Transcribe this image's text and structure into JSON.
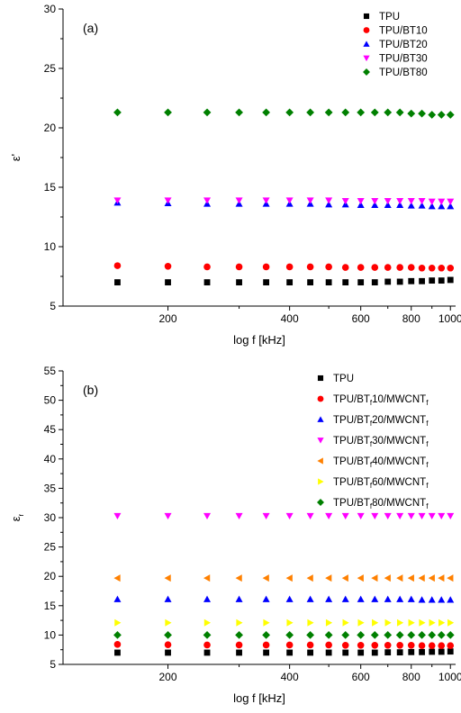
{
  "chart_data": [
    {
      "type": "scatter",
      "panel_label": "(a)",
      "xlabel": "log f [kHz]",
      "ylabel": "ε'",
      "x_scale": "log",
      "xlim": [
        110,
        1030
      ],
      "ylim": [
        5,
        30
      ],
      "x_ticks": [
        200,
        400,
        600,
        800,
        1000
      ],
      "y_ticks": [
        5,
        10,
        15,
        20,
        25,
        30
      ],
      "grid": false,
      "legend_placement": "top-right",
      "x": [
        150,
        200,
        250,
        300,
        350,
        400,
        450,
        500,
        550,
        600,
        650,
        700,
        750,
        800,
        850,
        900,
        950,
        1000
      ],
      "series": [
        {
          "name": "TPU",
          "marker": "square",
          "color": "#000000",
          "values": [
            7.0,
            7.0,
            7.0,
            7.0,
            7.0,
            7.0,
            7.0,
            7.0,
            7.0,
            7.0,
            7.0,
            7.05,
            7.05,
            7.1,
            7.1,
            7.15,
            7.15,
            7.2
          ]
        },
        {
          "name": "TPU/BT10",
          "marker": "circle",
          "color": "#ff0000",
          "values": [
            8.4,
            8.35,
            8.3,
            8.3,
            8.3,
            8.3,
            8.3,
            8.3,
            8.25,
            8.25,
            8.25,
            8.25,
            8.25,
            8.25,
            8.2,
            8.2,
            8.2,
            8.2
          ]
        },
        {
          "name": "TPU/BT20",
          "marker": "triangle-up",
          "color": "#0000ff",
          "values": [
            13.7,
            13.65,
            13.6,
            13.6,
            13.6,
            13.6,
            13.6,
            13.55,
            13.55,
            13.5,
            13.5,
            13.5,
            13.5,
            13.45,
            13.45,
            13.4,
            13.4,
            13.4
          ]
        },
        {
          "name": "TPU/BT30",
          "marker": "triangle-down",
          "color": "#ff00ff",
          "values": [
            13.9,
            13.9,
            13.9,
            13.9,
            13.9,
            13.9,
            13.9,
            13.9,
            13.85,
            13.85,
            13.85,
            13.85,
            13.85,
            13.85,
            13.85,
            13.8,
            13.8,
            13.8
          ]
        },
        {
          "name": "TPU/BT80",
          "marker": "diamond",
          "color": "#008000",
          "values": [
            21.3,
            21.3,
            21.3,
            21.3,
            21.3,
            21.3,
            21.3,
            21.3,
            21.3,
            21.3,
            21.3,
            21.3,
            21.3,
            21.2,
            21.2,
            21.1,
            21.1,
            21.1
          ]
        }
      ]
    },
    {
      "type": "scatter",
      "panel_label": "(b)",
      "xlabel": "log f [kHz]",
      "ylabel": "ε",
      "ylabel_sub": "r",
      "x_scale": "log",
      "xlim": [
        110,
        1030
      ],
      "ylim": [
        5,
        55
      ],
      "x_ticks": [
        200,
        400,
        600,
        800,
        1000
      ],
      "y_ticks": [
        5,
        10,
        15,
        20,
        25,
        30,
        35,
        40,
        45,
        50,
        55
      ],
      "grid": false,
      "legend_placement": "top-right",
      "x": [
        150,
        200,
        250,
        300,
        350,
        400,
        450,
        500,
        550,
        600,
        650,
        700,
        750,
        800,
        850,
        900,
        950,
        1000
      ],
      "series": [
        {
          "name": "TPU",
          "sub": "",
          "suffix": "",
          "marker": "square",
          "color": "#000000",
          "values": [
            7.0,
            7.0,
            7.0,
            7.0,
            7.0,
            7.0,
            7.0,
            7.0,
            7.0,
            7.0,
            7.0,
            7.05,
            7.05,
            7.1,
            7.1,
            7.15,
            7.15,
            7.2
          ]
        },
        {
          "name": "TPU/BT",
          "sub": "f",
          "suffix": "10/MWCNT",
          "suffix_sub": "f",
          "marker": "circle",
          "color": "#ff0000",
          "values": [
            8.4,
            8.35,
            8.3,
            8.3,
            8.3,
            8.3,
            8.3,
            8.3,
            8.25,
            8.25,
            8.25,
            8.25,
            8.25,
            8.25,
            8.2,
            8.2,
            8.2,
            8.2
          ]
        },
        {
          "name": "TPU/BT",
          "sub": "f",
          "suffix": "20/MWCNT",
          "suffix_sub": "f",
          "marker": "triangle-up",
          "color": "#0000ff",
          "values": [
            16.1,
            16.1,
            16.1,
            16.1,
            16.1,
            16.1,
            16.1,
            16.1,
            16.1,
            16.1,
            16.1,
            16.1,
            16.1,
            16.1,
            16.0,
            16.0,
            16.0,
            16.0
          ]
        },
        {
          "name": "TPU/BT",
          "sub": "f",
          "suffix": "30/MWCNT",
          "suffix_sub": "f",
          "marker": "triangle-down",
          "color": "#ff00ff",
          "values": [
            30.3,
            30.3,
            30.3,
            30.3,
            30.3,
            30.3,
            30.3,
            30.3,
            30.3,
            30.3,
            30.3,
            30.3,
            30.3,
            30.3,
            30.3,
            30.3,
            30.3,
            30.3
          ]
        },
        {
          "name": "TPU/BT",
          "sub": "f",
          "suffix": "40/MWCNT",
          "suffix_sub": "f",
          "marker": "triangle-left",
          "color": "#ff8000",
          "values": [
            19.7,
            19.7,
            19.7,
            19.7,
            19.7,
            19.7,
            19.7,
            19.7,
            19.7,
            19.7,
            19.7,
            19.7,
            19.7,
            19.7,
            19.7,
            19.7,
            19.7,
            19.7
          ]
        },
        {
          "name": "TPU/BT",
          "sub": "f",
          "suffix": "60/MWCNT",
          "suffix_sub": "f",
          "marker": "triangle-right",
          "color": "#ffff00",
          "values": [
            12.1,
            12.1,
            12.1,
            12.1,
            12.1,
            12.1,
            12.1,
            12.1,
            12.1,
            12.1,
            12.1,
            12.1,
            12.1,
            12.1,
            12.1,
            12.1,
            12.1,
            12.1
          ]
        },
        {
          "name": "TPU/BT",
          "sub": "f",
          "suffix": "80/MWCNT",
          "suffix_sub": "f",
          "marker": "diamond",
          "color": "#008000",
          "values": [
            10.0,
            10.0,
            10.0,
            10.0,
            10.0,
            10.0,
            10.0,
            10.0,
            10.0,
            10.0,
            10.0,
            10.0,
            10.0,
            10.0,
            10.0,
            10.0,
            10.0,
            10.0
          ]
        }
      ]
    }
  ]
}
